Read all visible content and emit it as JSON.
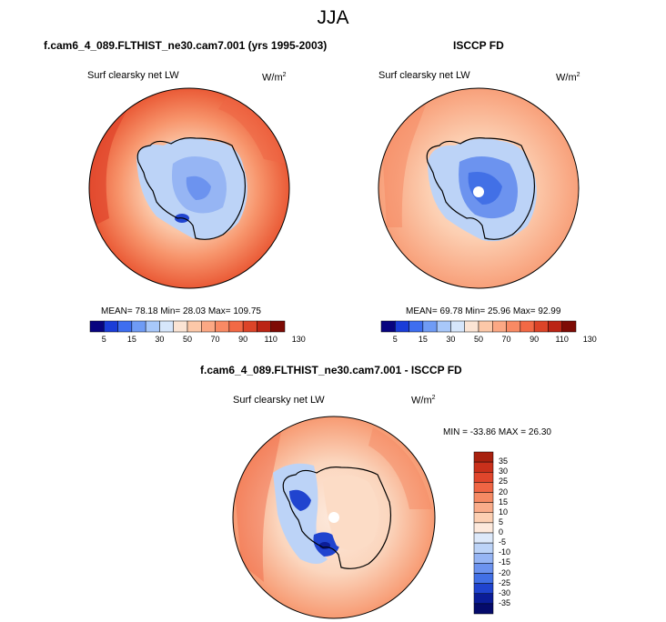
{
  "main_title": "JJA",
  "colors": {
    "land_outline": "#000000",
    "ocean_pale": "#fbe3d2",
    "pole_hole": "#ffffff"
  },
  "chart_data": [
    {
      "type": "polar_contour_map",
      "title": "f.cam6_4_089.FLTHIST_ne30.cam7.001 (yrs 1995-2003)",
      "variable": "Surf clearsky net LW",
      "units": "W/m",
      "units_exp": "2",
      "stats": {
        "mean": "78.18",
        "min": "28.03",
        "max": "109.75"
      },
      "stats_text": "MEAN=  78.18  Min=  28.03  Max=  109.75",
      "colorbar_levels": [
        "5",
        "15",
        "30",
        "50",
        "70",
        "90",
        "110",
        "130"
      ],
      "colorbar_colors": [
        "#08047f",
        "#1a3dd8",
        "#3e6ef0",
        "#6f9bf5",
        "#a8c8fa",
        "#d6e6fb",
        "#fbe4d4",
        "#fcc8a8",
        "#fca884",
        "#f98a64",
        "#f26945",
        "#dc4428",
        "#bb2414",
        "#7e0b05"
      ]
    },
    {
      "type": "polar_contour_map",
      "title": "ISCCP FD",
      "variable": "Surf clearsky net LW",
      "units": "W/m",
      "units_exp": "2",
      "stats": {
        "mean": "69.78",
        "min": "25.96",
        "max": "92.99"
      },
      "stats_text": "MEAN=  69.78  Min=  25.96  Max=  92.99",
      "colorbar_levels": [
        "5",
        "15",
        "30",
        "50",
        "70",
        "90",
        "110",
        "130"
      ],
      "colorbar_colors": [
        "#08047f",
        "#1a3dd8",
        "#3e6ef0",
        "#6f9bf5",
        "#a8c8fa",
        "#d6e6fb",
        "#fbe4d4",
        "#fcc8a8",
        "#fca884",
        "#f98a64",
        "#f26945",
        "#dc4428",
        "#bb2414",
        "#7e0b05"
      ]
    },
    {
      "type": "polar_contour_map",
      "title": "f.cam6_4_089.FLTHIST_ne30.cam7.001 - ISCCP FD",
      "variable": "Surf clearsky net LW",
      "units": "W/m",
      "units_exp": "2",
      "stats": {
        "min": "-33.86",
        "max": "26.30"
      },
      "stats_text": "MIN = -33.86 MAX =  26.30",
      "colorbar_levels": [
        "35",
        "30",
        "25",
        "20",
        "15",
        "10",
        "5",
        "0",
        "-5",
        "-10",
        "-15",
        "-20",
        "-25",
        "-30",
        "-35"
      ],
      "colorbar_colors": [
        "#a8210f",
        "#c9301b",
        "#e0462c",
        "#ef6544",
        "#f58a64",
        "#f9ac8a",
        "#fccfb2",
        "#fde9dc",
        "#dde9fa",
        "#bcd3f7",
        "#96b5f4",
        "#6c93ef",
        "#4270e6",
        "#2044cf",
        "#0b1d98",
        "#050b6b"
      ]
    }
  ]
}
